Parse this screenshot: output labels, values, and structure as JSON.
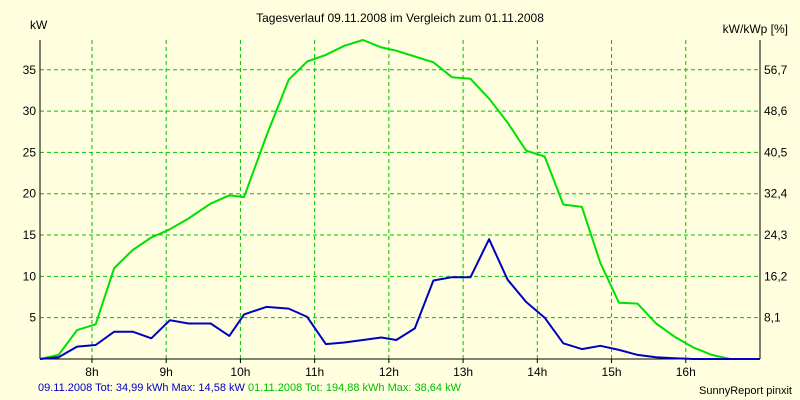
{
  "chart_data": {
    "type": "line",
    "title": "Tagesverlauf 09.11.2008 im Vergleich zum 01.11.2008",
    "ylabel": "kW",
    "ylabel_right": "kW/kWp [%]",
    "xlim": [
      7.3,
      17.0
    ],
    "ylim": [
      0,
      38.6
    ],
    "x_ticks": [
      8,
      9,
      10,
      11,
      12,
      13,
      14,
      15,
      16
    ],
    "x_tick_labels": [
      "8h",
      "9h",
      "10h",
      "11h",
      "12h",
      "13h",
      "14h",
      "15h",
      "16h"
    ],
    "y_ticks": [
      5,
      10,
      15,
      20,
      25,
      30,
      35
    ],
    "y_tick_labels": [
      "5",
      "10",
      "15",
      "20",
      "25",
      "30",
      "35"
    ],
    "y_right_ticks": [
      5,
      10,
      15,
      20,
      25,
      30,
      35
    ],
    "y_right_tick_labels": [
      "8,1",
      "16,2",
      "24,3",
      "32,4",
      "40,5",
      "48,6",
      "56,7"
    ],
    "grid": true,
    "legend_position": "bottom",
    "series": [
      {
        "name": "01.11.2008",
        "color": "#00e000",
        "x": [
          7.3,
          7.55,
          7.8,
          8.05,
          8.3,
          8.55,
          8.8,
          9.05,
          9.3,
          9.6,
          9.85,
          10.05,
          10.35,
          10.65,
          10.9,
          11.15,
          11.4,
          11.65,
          11.9,
          12.1,
          12.35,
          12.6,
          12.85,
          13.1,
          13.35,
          13.6,
          13.85,
          14.1,
          14.35,
          14.6,
          14.85,
          15.1,
          15.35,
          15.6,
          15.85,
          16.1,
          16.35,
          16.6,
          16.85,
          17.0
        ],
        "y": [
          0,
          0.5,
          3.5,
          4.2,
          11,
          13.2,
          14.7,
          15.7,
          17,
          18.8,
          19.8,
          19.6,
          27,
          33.8,
          36,
          36.8,
          37.9,
          38.6,
          37.7,
          37.3,
          36.6,
          35.9,
          34.1,
          33.9,
          31.5,
          28.6,
          25.2,
          24.5,
          18.7,
          18.4,
          11.6,
          6.8,
          6.7,
          4.3,
          2.7,
          1.4,
          0.5,
          0,
          0,
          0
        ]
      },
      {
        "name": "09.11.2008",
        "color": "#0000c0",
        "x": [
          7.3,
          7.55,
          7.8,
          8.05,
          8.3,
          8.55,
          8.8,
          9.05,
          9.3,
          9.6,
          9.85,
          10.05,
          10.35,
          10.65,
          10.9,
          11.15,
          11.4,
          11.65,
          11.9,
          12.1,
          12.35,
          12.6,
          12.85,
          13.1,
          13.35,
          13.6,
          13.85,
          14.1,
          14.35,
          14.6,
          14.85,
          15.1,
          15.35,
          15.6,
          15.85,
          16.1,
          16.35,
          16.6,
          16.85,
          17.0
        ],
        "y": [
          0,
          0.2,
          1.5,
          1.7,
          3.3,
          3.3,
          2.5,
          4.7,
          4.3,
          4.3,
          2.8,
          5.4,
          6.3,
          6.1,
          5.1,
          1.8,
          2,
          2.3,
          2.6,
          2.3,
          3.7,
          9.5,
          9.9,
          9.9,
          14.5,
          9.6,
          6.9,
          5,
          1.9,
          1.2,
          1.6,
          1.1,
          0.5,
          0.2,
          0.1,
          0,
          0,
          0,
          0,
          0
        ]
      }
    ]
  },
  "footer": {
    "series_a_text": "09.11.2008 Tot: 34,99 kWh Max: 14,58 kW",
    "series_b_text": "01.11.2008 Tot: 194,88 kWh Max: 38,64 kW",
    "credit": "SunnyReport pinxit"
  },
  "colors": {
    "background": "#ffffe0",
    "grid": "#00c000",
    "axis": "#000000"
  }
}
